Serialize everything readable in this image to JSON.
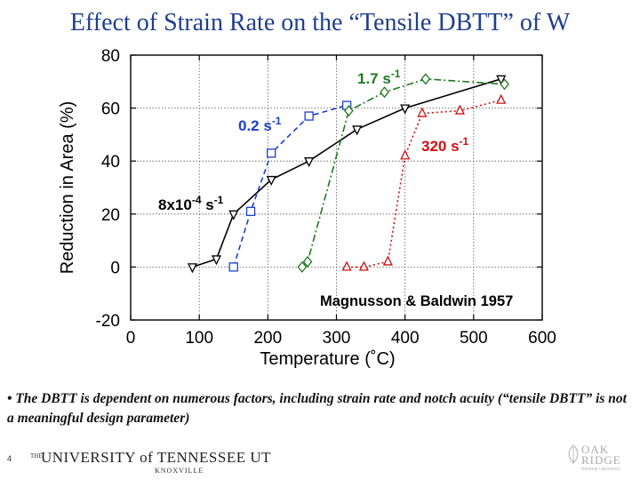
{
  "slide": {
    "title": "Effect of Strain Rate on the “Tensile DBTT” of W",
    "note": "• The DBTT is dependent on numerous factors, including strain rate and notch acuity (“tensile DBTT” is not a meaningful design parameter)",
    "page_number": "4",
    "footer_logo_the": "THE",
    "footer_logo_university": "UNIVERSITY of TENNESSEE UT",
    "footer_logo_knoxville": "KNOXVILLE",
    "ornl_logo_oak": "OAK",
    "ornl_logo_ridge": "RIDGE",
    "ornl_logo_lab": "National Laboratory"
  },
  "chart_data": {
    "type": "line",
    "xlabel": "Temperature (˚C)",
    "ylabel": "Reduction in Area (%)",
    "xlim": [
      0,
      600
    ],
    "ylim": [
      -20,
      80
    ],
    "xticks": [
      "0",
      "100",
      "200",
      "300",
      "400",
      "500",
      "600"
    ],
    "yticks": [
      "-20",
      "0",
      "20",
      "40",
      "60",
      "80"
    ],
    "grid": true,
    "annotation": "Magnusson & Baldwin 1957",
    "series": [
      {
        "name": "8x10-4 s-1",
        "label_base": "8x10",
        "label_exp1": "-4",
        "label_mid": " s",
        "label_exp2": "-1",
        "color": "#000000",
        "marker": "triangle-down",
        "dash": "solid",
        "x": [
          90,
          125,
          150,
          205,
          260,
          330,
          400,
          540
        ],
        "y": [
          0,
          3,
          20,
          33,
          40,
          52,
          60,
          71
        ]
      },
      {
        "name": "0.2 s-1",
        "label_base": "0.2 s",
        "label_exp1": "-1",
        "color": "#1a3fd0",
        "marker": "square",
        "dash": "dash",
        "x": [
          150,
          175,
          205,
          260,
          315
        ],
        "y": [
          0,
          21,
          43,
          57,
          61
        ]
      },
      {
        "name": "1.7 s-1",
        "label_base": "1.7 s",
        "label_exp1": "-1",
        "color": "#1d7a1d",
        "marker": "diamond",
        "dash": "dashdot",
        "x": [
          250,
          258,
          318,
          370,
          430,
          545
        ],
        "y": [
          0,
          2,
          59,
          66,
          71,
          69
        ]
      },
      {
        "name": "320 s-1",
        "label_base": "320 s",
        "label_exp1": "-1",
        "color": "#d01010",
        "marker": "triangle-up",
        "dash": "dot",
        "x": [
          315,
          340,
          375,
          400,
          425,
          480,
          540
        ],
        "y": [
          0,
          0,
          2,
          42,
          58,
          59,
          63
        ]
      }
    ]
  }
}
